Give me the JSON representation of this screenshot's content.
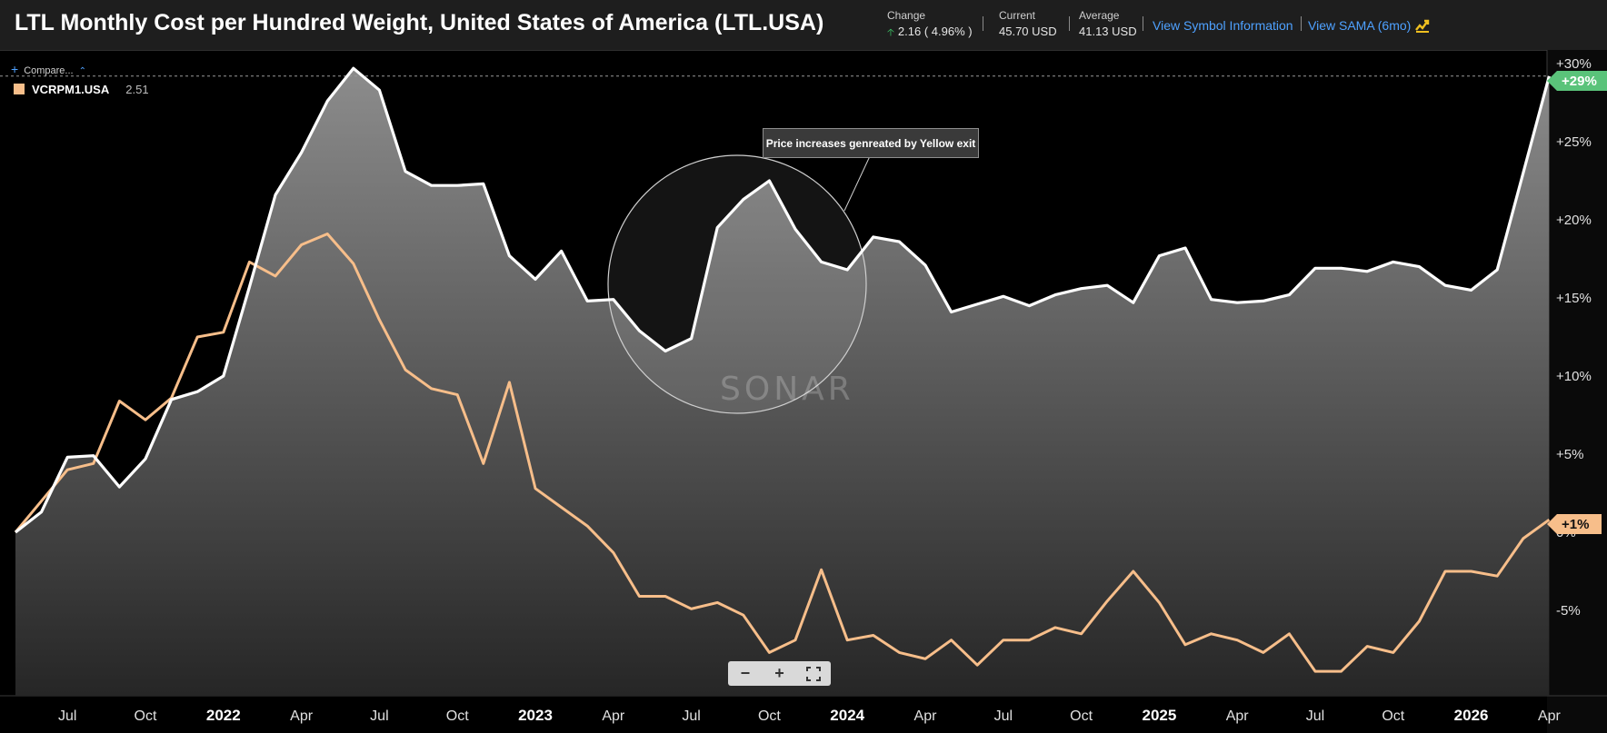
{
  "header": {
    "title": "LTL Monthly Cost per Hundred Weight, United States of America (LTL.USA)",
    "change_label": "Change",
    "change_value": "2.16 ( 4.96% )",
    "current_label": "Current",
    "current_value": "45.70 USD",
    "average_label": "Average",
    "average_value": "41.13 USD",
    "link_symbol": "View Symbol Information",
    "link_sama": "View SAMA (6mo)"
  },
  "toolbar": {
    "compare_label": "Compare..."
  },
  "legend": {
    "series_name": "VCRPM1.USA",
    "series_value": "2.51"
  },
  "annotation_text": "Price increases genreated by Yellow exit",
  "watermark": "SONAR",
  "tags": {
    "main": "+29%",
    "compare": "+1%"
  },
  "colors": {
    "main_line": "#ffffff",
    "compare_line": "#f7be8a",
    "tag_main": "#5ac37a",
    "tag_compare": "#f7be8a",
    "link": "#4ea1ff"
  },
  "chart_data": {
    "type": "area",
    "x_start": "2021-05",
    "x_tick_labels": [
      "Jul",
      "Oct",
      "2022",
      "Apr",
      "Jul",
      "Oct",
      "2023",
      "Apr",
      "Jul",
      "Oct",
      "2024",
      "Apr",
      "Jul",
      "Oct",
      "2025",
      "Apr",
      "Jul",
      "Oct",
      "2026",
      "Apr"
    ],
    "y_tick_labels": [
      "+30%",
      "+25%",
      "+20%",
      "+15%",
      "+10%",
      "+5%",
      "0%",
      "-5%"
    ],
    "ylim": [
      -10.5,
      30.5
    ],
    "y_unit": "%",
    "grid": false,
    "legend_position": "top-left",
    "series": [
      {
        "name": "LTL.USA",
        "style": "area",
        "values": [
          0,
          1.3,
          4.8,
          4.9,
          2.9,
          4.7,
          8.5,
          9.0,
          10.0,
          15.7,
          21.6,
          24.3,
          27.6,
          29.7,
          28.3,
          23.1,
          22.2,
          22.2,
          22.3,
          17.7,
          16.2,
          18.0,
          14.8,
          14.9,
          12.9,
          11.6,
          12.4,
          19.5,
          21.3,
          22.5,
          19.4,
          17.3,
          16.8,
          18.9,
          18.6,
          17.1,
          14.1,
          14.6,
          15.1,
          14.5,
          15.2,
          15.6,
          15.8,
          14.7,
          17.7,
          18.2,
          14.9,
          14.7,
          14.8,
          15.2,
          16.9,
          16.9,
          16.7,
          17.3,
          17.0,
          15.8,
          15.5,
          16.8,
          23.0,
          29.2
        ]
      },
      {
        "name": "VCRPM1.USA",
        "style": "line",
        "values": [
          0,
          2.0,
          4.0,
          4.4,
          8.4,
          7.2,
          8.6,
          12.5,
          12.8,
          17.3,
          16.4,
          18.4,
          19.1,
          17.2,
          13.6,
          10.4,
          9.2,
          8.8,
          4.4,
          9.6,
          2.8,
          1.6,
          0.4,
          -1.3,
          -4.1,
          -4.1,
          -4.9,
          -4.5,
          -5.3,
          -7.7,
          -6.9,
          -2.4,
          -6.9,
          -6.6,
          -7.7,
          -8.1,
          -6.9,
          -8.5,
          -6.9,
          -6.9,
          -6.1,
          -6.5,
          -4.4,
          -2.5,
          -4.5,
          -7.2,
          -6.5,
          -6.9,
          -7.7,
          -6.5,
          -8.9,
          -8.9,
          -7.3,
          -7.7,
          -5.7,
          -2.5,
          -2.5,
          -2.8,
          -0.4,
          0.8
        ]
      }
    ]
  }
}
